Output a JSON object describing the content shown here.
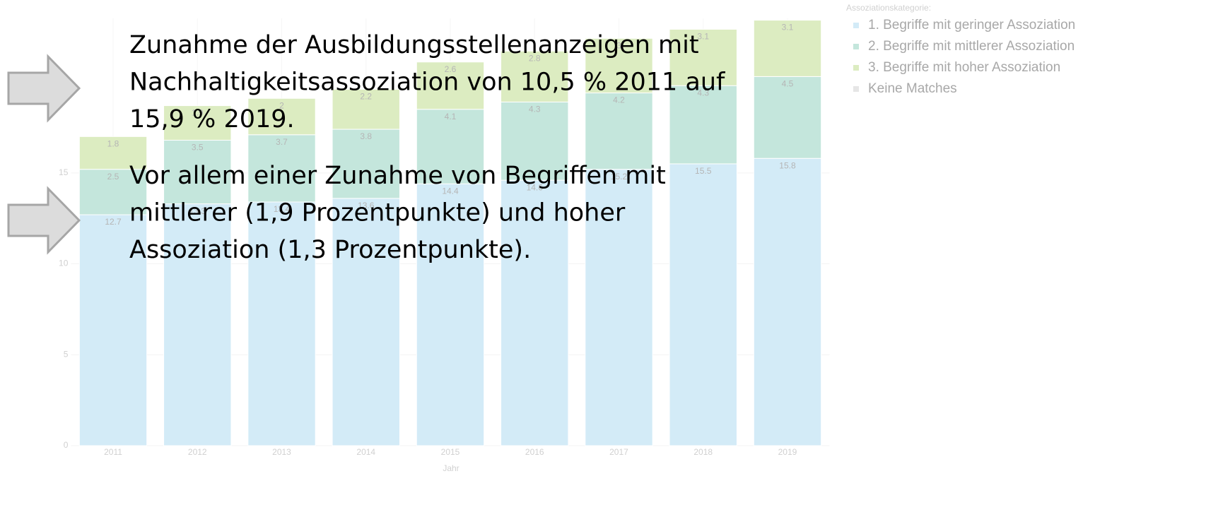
{
  "chart_data": {
    "type": "stacked_bar",
    "categories": [
      "2011",
      "2012",
      "2013",
      "2014",
      "2015",
      "2016",
      "2017",
      "2018",
      "2019"
    ],
    "series": [
      {
        "name": "1. Begriffe mit geringer Assoziation",
        "color": "#d3ebf7",
        "values": [
          12.7,
          13.3,
          13.4,
          13.6,
          14.4,
          14.6,
          15.2,
          15.5,
          15.8
        ]
      },
      {
        "name": "2. Begriffe mit mittlerer Assoziation",
        "color": "#c4e6dc",
        "values": [
          2.5,
          3.5,
          3.7,
          3.8,
          4.1,
          4.3,
          4.2,
          4.3,
          4.5
        ]
      },
      {
        "name": "3. Begriffe mit hoher Assoziation",
        "color": "#dcecc1",
        "values": [
          1.8,
          1.9,
          2.0,
          2.2,
          2.6,
          2.8,
          3.0,
          3.1,
          3.1
        ]
      },
      {
        "name": "Keine Matches",
        "color": "#e6e6e6",
        "values": [
          null,
          null,
          null,
          null,
          null,
          null,
          null,
          null,
          null
        ]
      }
    ],
    "xlabel": "Jahr",
    "legend_title": "Assoziationskategorie:",
    "ylim": [
      0,
      23.5
    ],
    "yticks": [
      0,
      5,
      10,
      15
    ],
    "grid": true,
    "notes": [
      [
        "Zunahme der Ausbildungsstellenanzeigen mit",
        "Nachhaltigkeitsassoziation von 10,5 % 2011 auf",
        "15,9 % 2019."
      ],
      [
        "Vor allem einer Zunahme von Begriffen mit",
        "mittlerer (1,9 Prozentpunkte) und hoher",
        "Assoziation (1,3 Prozentpunkte)."
      ]
    ]
  }
}
